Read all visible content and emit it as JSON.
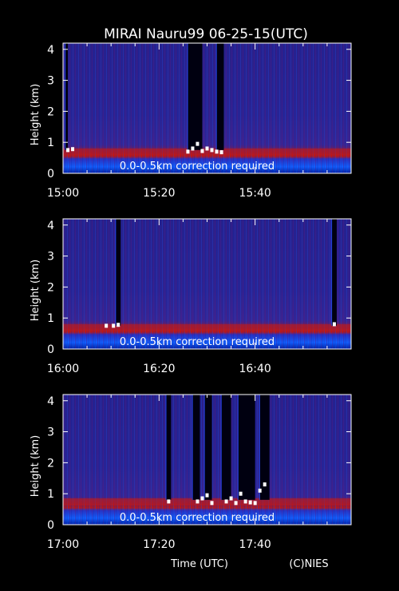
{
  "title": "MIRAI Nauru99 06-25-15(UTC)",
  "xlabel": "Time (UTC)",
  "credit": "(C)NIES",
  "colors": {
    "background": "#000000",
    "plot_base": "#2a2090",
    "aerosol_layer": "#cc1a10",
    "cloud": "#ffffff",
    "near_surface": "#0a3cff"
  },
  "chart_data": [
    {
      "type": "heatmap",
      "ylabel": "Height (km)",
      "ylim": [
        0,
        4.2
      ],
      "yticks": [
        "0",
        "1",
        "2",
        "3",
        "4"
      ],
      "xlim": [
        "15:00",
        "16:00"
      ],
      "xticks": [
        "15:00",
        "15:20",
        "15:40"
      ],
      "annotation": "0.0-0.5km correction required",
      "aerosol_layer_top_km": 0.65,
      "blocked_intervals_min": [
        [
          0.5,
          1.0
        ],
        [
          26,
          29
        ],
        [
          32,
          33.5
        ]
      ],
      "cloud_points": [
        [
          1,
          0.75
        ],
        [
          2,
          0.78
        ],
        [
          26,
          0.7
        ],
        [
          27,
          0.8
        ],
        [
          28,
          0.95
        ],
        [
          29,
          0.72
        ],
        [
          30,
          0.8
        ],
        [
          31,
          0.75
        ],
        [
          32,
          0.7
        ],
        [
          33,
          0.68
        ]
      ]
    },
    {
      "type": "heatmap",
      "ylabel": "Height (km)",
      "ylim": [
        0,
        4.2
      ],
      "yticks": [
        "0",
        "1",
        "2",
        "3",
        "4"
      ],
      "xlim": [
        "16:00",
        "17:00"
      ],
      "xticks": [
        "16:00",
        "16:20",
        "16:40"
      ],
      "annotation": "0.0-0.5km correction required",
      "aerosol_layer_top_km": 0.65,
      "blocked_intervals_min": [
        [
          11,
          12
        ],
        [
          56,
          57
        ]
      ],
      "cloud_points": [
        [
          9,
          0.75
        ],
        [
          10.5,
          0.75
        ],
        [
          11.5,
          0.78
        ],
        [
          56.5,
          0.8
        ]
      ]
    },
    {
      "type": "heatmap",
      "ylabel": "Height (km)",
      "ylim": [
        0,
        4.2
      ],
      "yticks": [
        "0",
        "1",
        "2",
        "3",
        "4"
      ],
      "xlim": [
        "17:00",
        "18:00"
      ],
      "xticks": [
        "17:00",
        "17:20",
        "17:40"
      ],
      "annotation": "0.0-0.5km correction required",
      "aerosol_layer_top_km": 0.7,
      "blocked_intervals_min": [
        [
          21.5,
          22.5
        ],
        [
          27,
          28.5
        ],
        [
          29.5,
          31
        ],
        [
          33,
          35
        ],
        [
          36.5,
          40
        ],
        [
          41,
          43
        ]
      ],
      "cloud_points": [
        [
          22,
          0.75
        ],
        [
          28,
          0.75
        ],
        [
          29,
          0.85
        ],
        [
          30,
          0.95
        ],
        [
          31,
          0.7
        ],
        [
          34,
          0.75
        ],
        [
          35,
          0.85
        ],
        [
          36,
          0.7
        ],
        [
          37,
          1.0
        ],
        [
          38,
          0.75
        ],
        [
          39,
          0.72
        ],
        [
          40,
          0.7
        ],
        [
          41,
          1.1
        ],
        [
          42,
          1.3
        ]
      ]
    }
  ]
}
